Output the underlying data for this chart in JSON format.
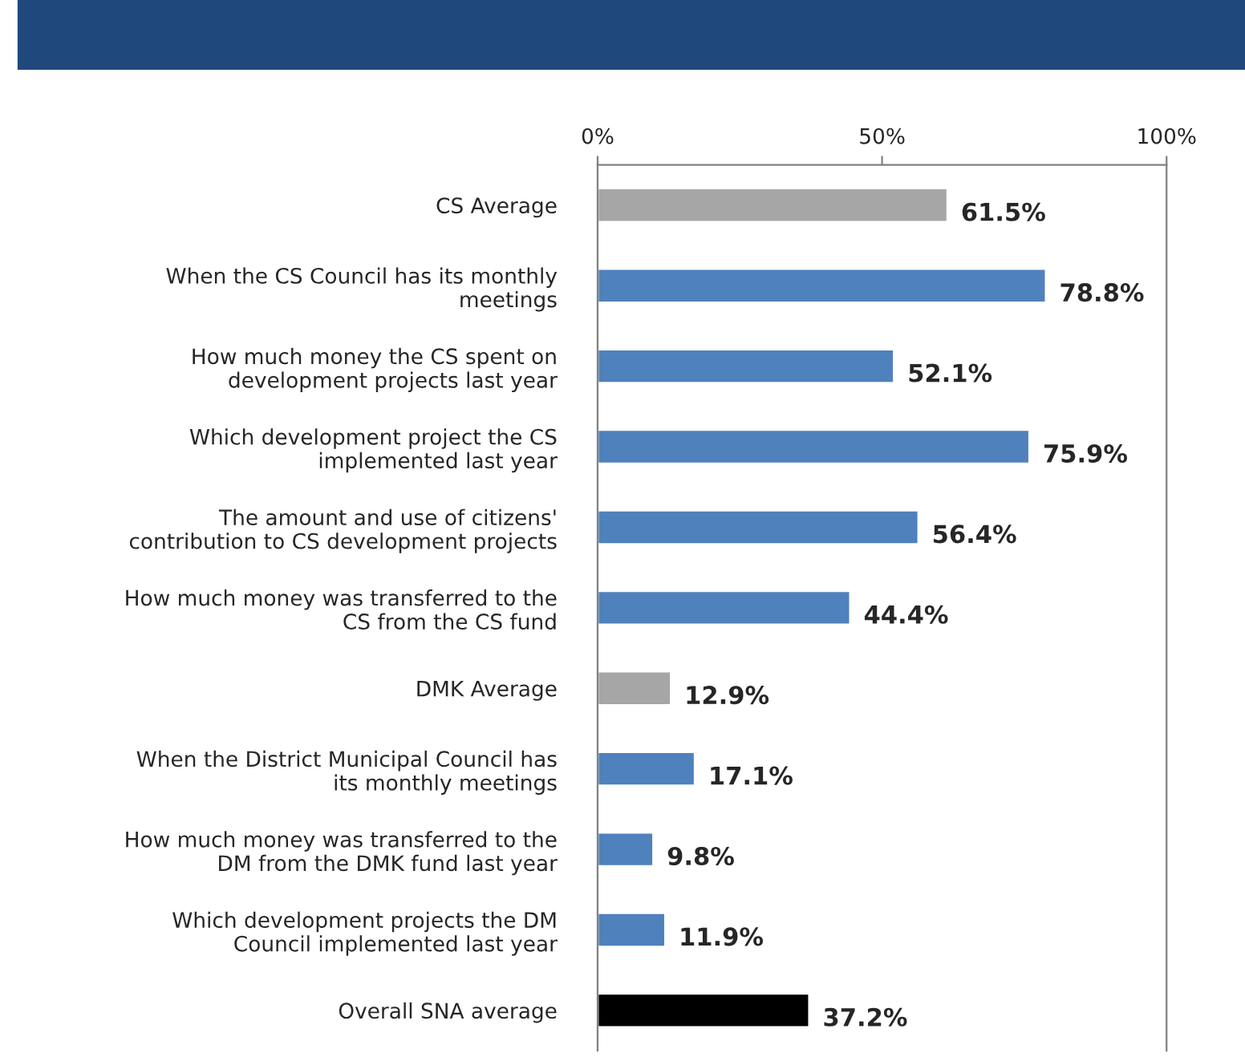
{
  "chart_data": {
    "type": "bar",
    "orientation": "horizontal",
    "categories": [
      "CS Average",
      "When the CS Council has its monthly\nmeetings",
      "How much money the CS spent on\ndevelopment projects last year",
      "Which development project the CS\nimplemented last year",
      "The amount and use of citizens'\ncontribution to CS development projects",
      "How much money was transferred to the\nCS from the CS fund",
      "DMK Average",
      "When the District Municipal Council has\nits monthly meetings",
      "How much money was transferred to the\nDM from the DMK fund last year",
      "Which development projects the DM\nCouncil implemented last year",
      "Overall SNA average"
    ],
    "values": [
      61.5,
      78.8,
      52.1,
      75.9,
      56.4,
      44.4,
      12.9,
      17.1,
      9.8,
      11.9,
      37.2
    ],
    "colors": [
      "#a6a6a6",
      "#4f81bd",
      "#4f81bd",
      "#4f81bd",
      "#4f81bd",
      "#4f81bd",
      "#a6a6a6",
      "#4f81bd",
      "#4f81bd",
      "#4f81bd",
      "#000000"
    ],
    "value_labels": [
      "61.5%",
      "78.8%",
      "52.1%",
      "75.9%",
      "56.4%",
      "44.4%",
      "12.9%",
      "17.1%",
      "9.8%",
      "11.9%",
      "37.2%"
    ],
    "xlim": [
      0,
      100
    ],
    "xticks": [
      {
        "value": 0,
        "label": "0%"
      },
      {
        "value": 50,
        "label": "50%"
      },
      {
        "value": 100,
        "label": "100%"
      }
    ],
    "grid": false,
    "legend": false
  }
}
